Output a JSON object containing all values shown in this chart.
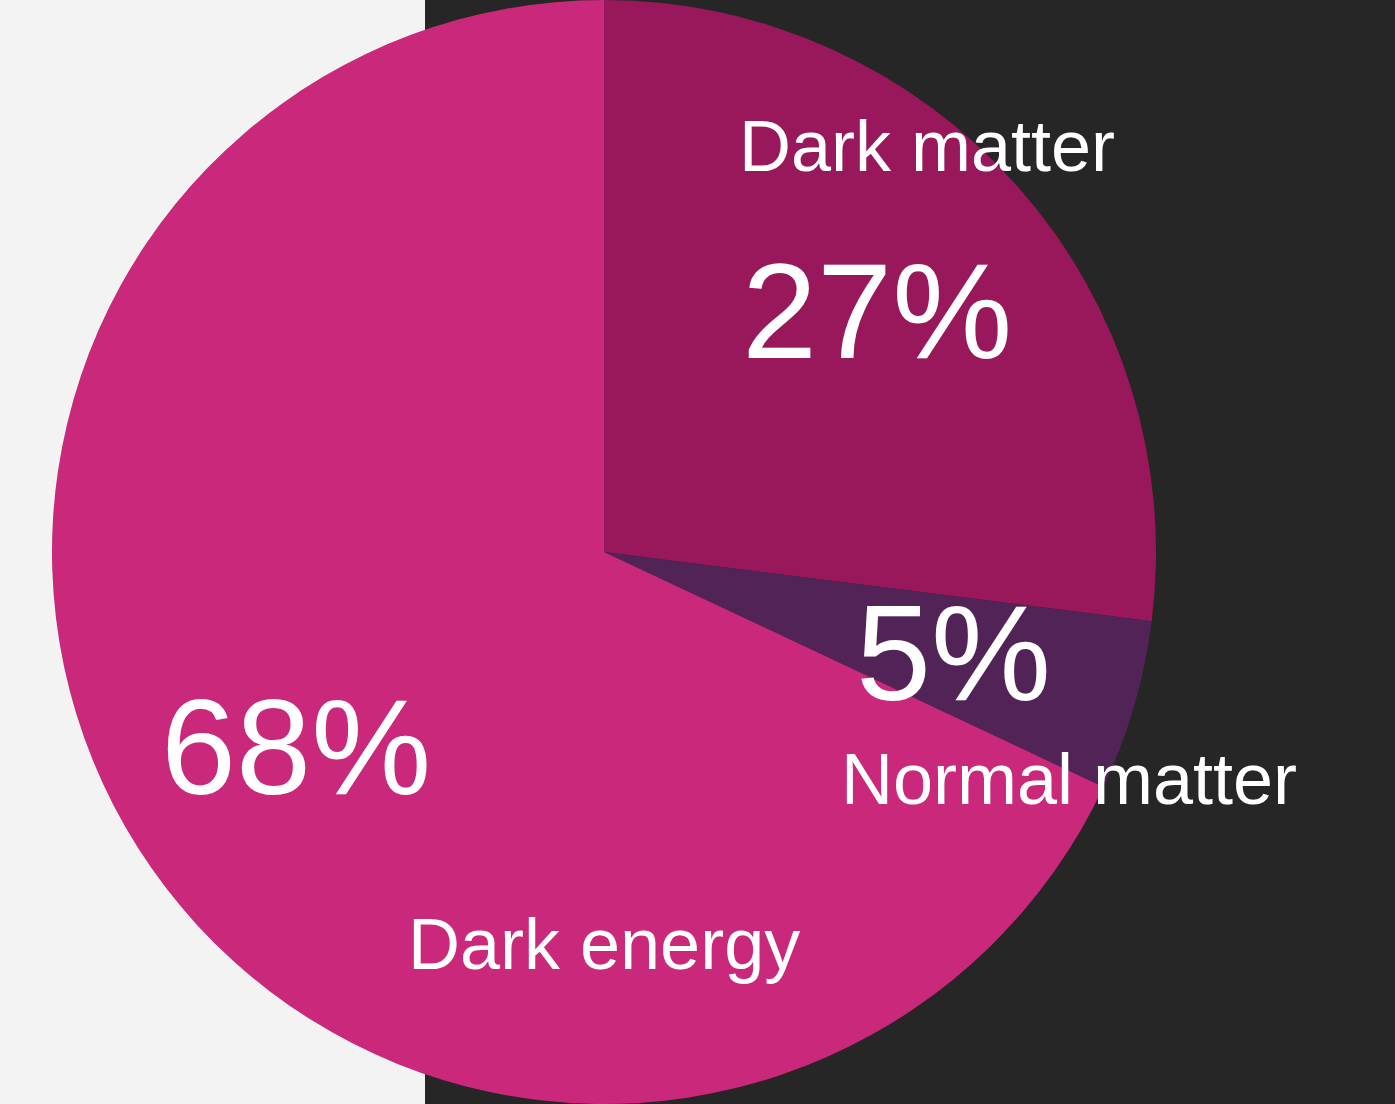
{
  "chart_data": {
    "type": "pie",
    "categories": [
      "Dark matter",
      "Normal matter",
      "Dark energy"
    ],
    "values": [
      27,
      5,
      68
    ],
    "colors": [
      "#99185c",
      "#522357",
      "#ca287a"
    ],
    "value_labels": [
      "27%",
      "5%",
      "68%"
    ],
    "legend": false
  }
}
